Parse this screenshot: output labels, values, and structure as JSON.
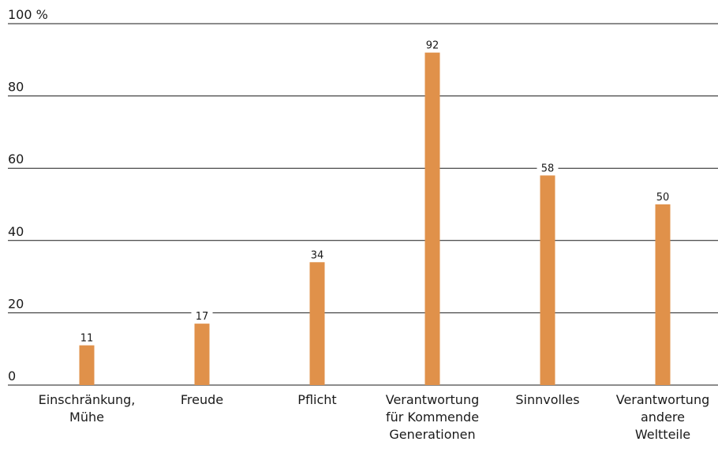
{
  "chart_data": {
    "type": "bar",
    "title": "",
    "xlabel": "",
    "ylabel": "",
    "unit": "%",
    "top_tick_label": "100 %",
    "ylim": [
      0,
      100
    ],
    "yticks": [
      0,
      20,
      40,
      60,
      80,
      100
    ],
    "grid": true,
    "bar_color": "#e0914a",
    "categories": [
      [
        "Einschränkung,",
        "Mühe"
      ],
      [
        "Freude"
      ],
      [
        "Pflicht"
      ],
      [
        "Verantwortung",
        "für Kommende",
        "Generationen"
      ],
      [
        "Sinnvolles"
      ],
      [
        "Verantwortung",
        "andere",
        "Weltteile"
      ]
    ],
    "values": [
      11,
      17,
      34,
      92,
      58,
      50
    ]
  }
}
